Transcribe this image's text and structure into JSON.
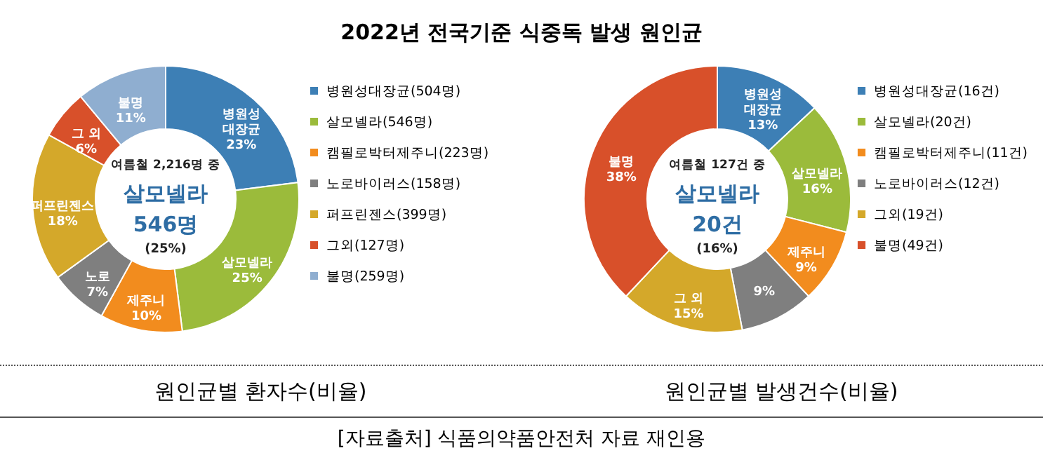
{
  "chart_data": [
    {
      "type": "donut",
      "title": "2022년 전국기준 식중독 발생 원인균",
      "xlabel": "원인균별 환자수(비율)",
      "categories": [
        "병원성대장균(504명)",
        "살모넬라(546명)",
        "캠필로박터제주니(223명)",
        "노로바이러스(158명)",
        "퍼프린젠스(399명)",
        "그외(127명)",
        "불명(259명)"
      ],
      "values": [
        23,
        25,
        10,
        7,
        18,
        6,
        11
      ],
      "colors": [
        "#3d7fb5",
        "#9bbb3b",
        "#f28c1e",
        "#7f7f7f",
        "#d4a82a",
        "#d8502a",
        "#8faed0"
      ],
      "value_labels": [
        "병원성\n대장균\n23%",
        "살모넬라\n25%",
        "제주니\n10%",
        "노로\n7%",
        "퍼프린젠스\n18%",
        "그 외\n6%",
        "불명\n11%"
      ],
      "annotations": [
        "여름철 2,216명 중",
        "살모넬라",
        "546명",
        "(25%)"
      ],
      "legend": "right"
    },
    {
      "type": "donut",
      "xlabel": "원인균별 발생건수(비율)",
      "categories": [
        "병원성대장균(16건)",
        "살모넬라(20건)",
        "캠필로박터제주니(11건)",
        "노로바이러스(12건)",
        "그외(19건)",
        "불명(49건)"
      ],
      "values": [
        13,
        16,
        9,
        9,
        15,
        38
      ],
      "colors": [
        "#3d7fb5",
        "#9bbb3b",
        "#f28c1e",
        "#7f7f7f",
        "#d4a82a",
        "#d8502a"
      ],
      "value_labels": [
        "병원성\n대장균\n13%",
        "살모넬라\n16%",
        "제주니\n9%",
        "9%",
        "그 외\n15%",
        "불명\n38%"
      ],
      "annotations": [
        "여름철 127건 중",
        "살모넬라",
        "20건",
        "(16%)",
        "[자료출처] 식품의약품안전처 자료 재인용"
      ],
      "legend": "right"
    }
  ]
}
